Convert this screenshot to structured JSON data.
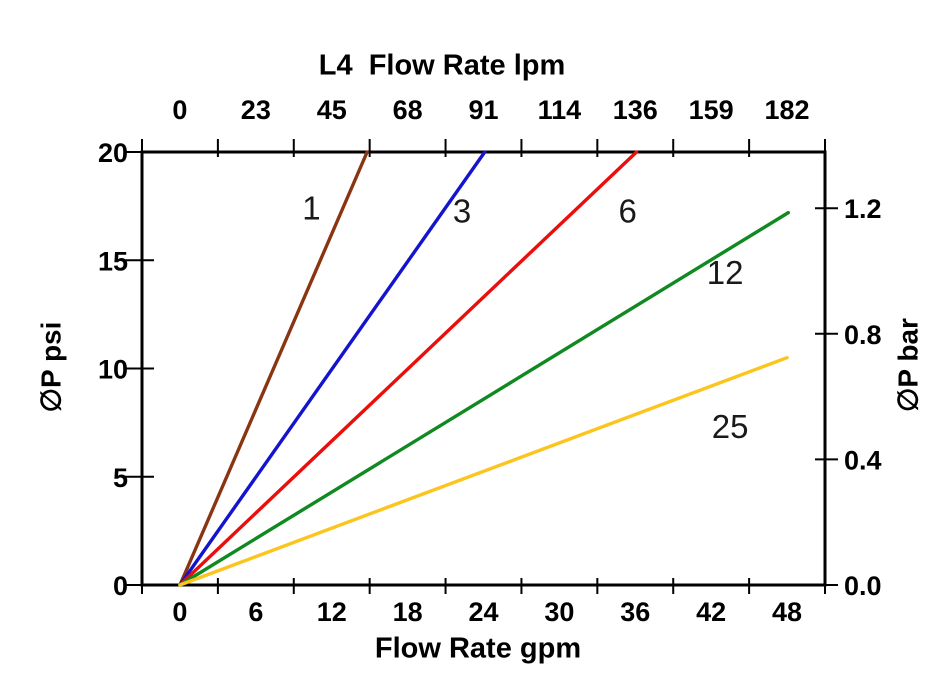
{
  "chart_data": {
    "type": "line",
    "title": "L4  Flow Rate lpm",
    "background": "#ffffff",
    "axis_color": "#000000",
    "grid": false,
    "legend": "labels-on-lines",
    "axes": {
      "bottom": {
        "label": "Flow Rate gpm",
        "tick_values": [
          0,
          6,
          12,
          18,
          24,
          30,
          36,
          42,
          48
        ],
        "range_gpm": [
          -3,
          51
        ],
        "boundary_tick_step_gpm": 6
      },
      "top": {
        "label": "L4  Flow Rate lpm",
        "tick_labels": [
          "0",
          "23",
          "45",
          "68",
          "91",
          "114",
          "136",
          "159",
          "182"
        ],
        "unit": "lpm"
      },
      "left": {
        "label": "∅P psi",
        "tick_values": [
          0,
          5,
          10,
          15,
          20
        ],
        "range_psi": [
          0,
          20
        ]
      },
      "right": {
        "label": "∅P bar",
        "tick_labels": [
          "0.0",
          "0.4",
          "0.8",
          "1.2"
        ],
        "tick_values_bar": [
          0.0,
          0.4,
          0.8,
          1.2
        ],
        "psi_per_bar": 14.5038
      }
    },
    "series": [
      {
        "name": "1",
        "color": "#8A3512",
        "points_gpm_psi": [
          [
            0,
            0
          ],
          [
            14.8,
            20
          ]
        ],
        "label": "1",
        "label_pos_gpm_psi": [
          10.4,
          17.4
        ]
      },
      {
        "name": "3",
        "color": "#1414CE",
        "points_gpm_psi": [
          [
            0,
            0
          ],
          [
            24.1,
            20
          ]
        ],
        "label": "3",
        "label_pos_gpm_psi": [
          22.3,
          17.25
        ]
      },
      {
        "name": "6",
        "color": "#E90F0C",
        "points_gpm_psi": [
          [
            0,
            0
          ],
          [
            36.1,
            20
          ]
        ],
        "label": "6",
        "label_pos_gpm_psi": [
          35.4,
          17.25
        ]
      },
      {
        "name": "12",
        "color": "#108A20",
        "points_gpm_psi": [
          [
            0,
            0
          ],
          [
            48.1,
            17.2
          ]
        ],
        "label": "12",
        "label_pos_gpm_psi": [
          43.1,
          14.4
        ]
      },
      {
        "name": "25",
        "color": "#FBC51C",
        "points_gpm_psi": [
          [
            0,
            0
          ],
          [
            48.0,
            10.5
          ]
        ],
        "label": "25",
        "label_pos_gpm_psi": [
          43.5,
          7.3
        ]
      }
    ]
  }
}
